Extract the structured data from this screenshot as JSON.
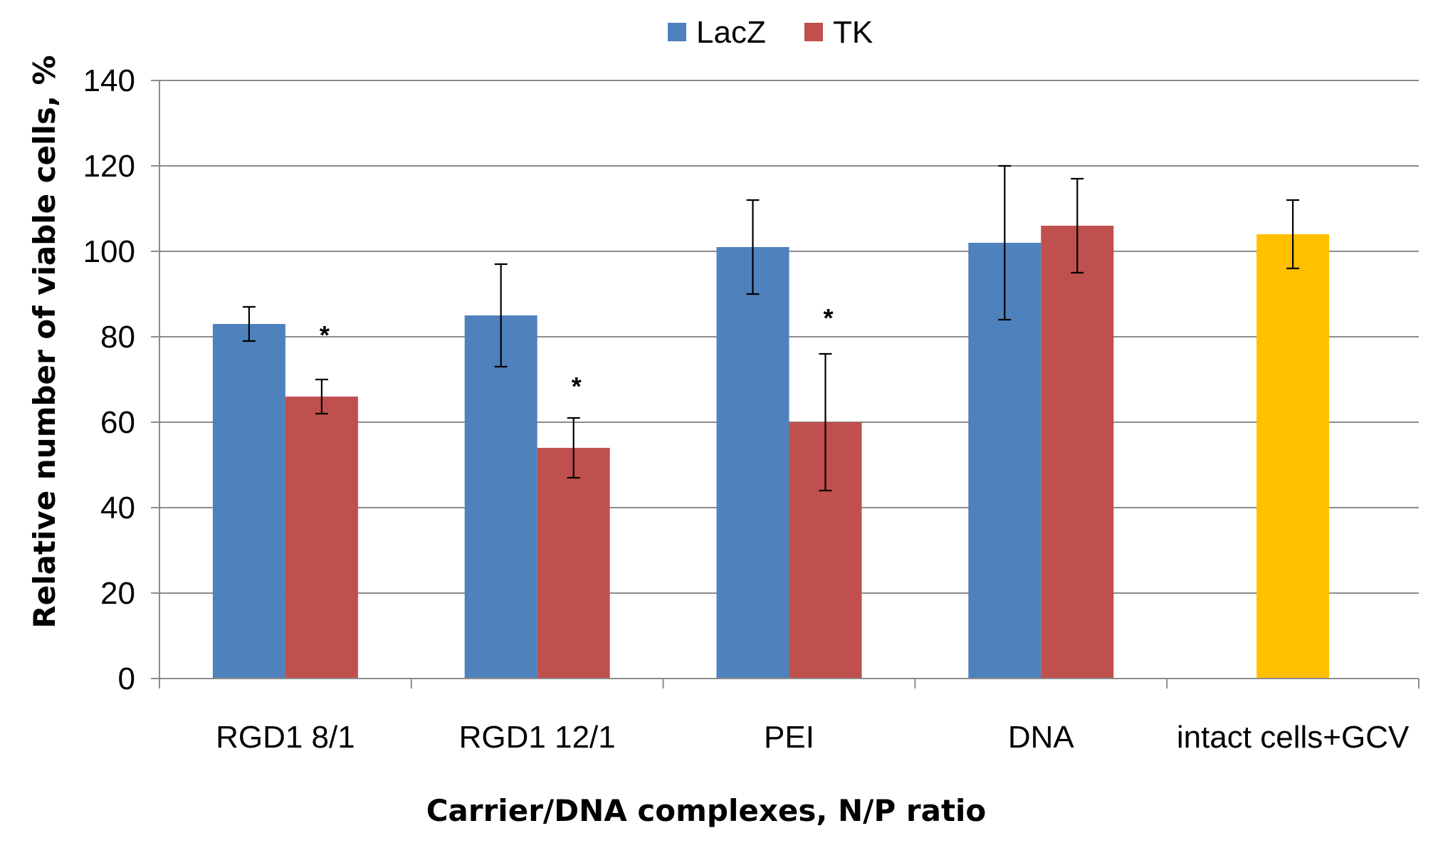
{
  "chart_data": {
    "type": "bar",
    "title": "",
    "xlabel": "Carrier/DNA complexes, N/P ratio",
    "ylabel": "Relative number of viable cells, %",
    "ylim": [
      0,
      140
    ],
    "yticks": [
      0,
      20,
      40,
      60,
      80,
      100,
      120,
      140
    ],
    "grid": true,
    "legend_position": "top-center",
    "categories": [
      "RGD1 8/1",
      "RGD1 12/1",
      "PEI",
      "DNA",
      "intact cells+GCV"
    ],
    "series": [
      {
        "name": "LacZ",
        "color": "#4f81bd",
        "values": [
          83,
          85,
          101,
          102,
          null
        ],
        "errors": [
          4,
          12,
          11,
          18,
          null
        ]
      },
      {
        "name": "TK",
        "color": "#c0504d",
        "values": [
          66,
          54,
          60,
          106,
          null
        ],
        "errors": [
          4,
          7,
          16,
          11,
          null
        ]
      },
      {
        "name": "intact cells+GCV",
        "color": "#ffc000",
        "show_in_legend": false,
        "values": [
          null,
          null,
          null,
          null,
          104
        ],
        "errors": [
          null,
          null,
          null,
          null,
          8
        ]
      }
    ],
    "annotations": [
      {
        "text": "*",
        "category": "RGD1 8/1",
        "series": "TK",
        "y": 82
      },
      {
        "text": "*",
        "category": "RGD1 12/1",
        "series": "TK",
        "y": 70
      },
      {
        "text": "*",
        "category": "PEI",
        "series": "TK",
        "y": 86
      }
    ]
  }
}
